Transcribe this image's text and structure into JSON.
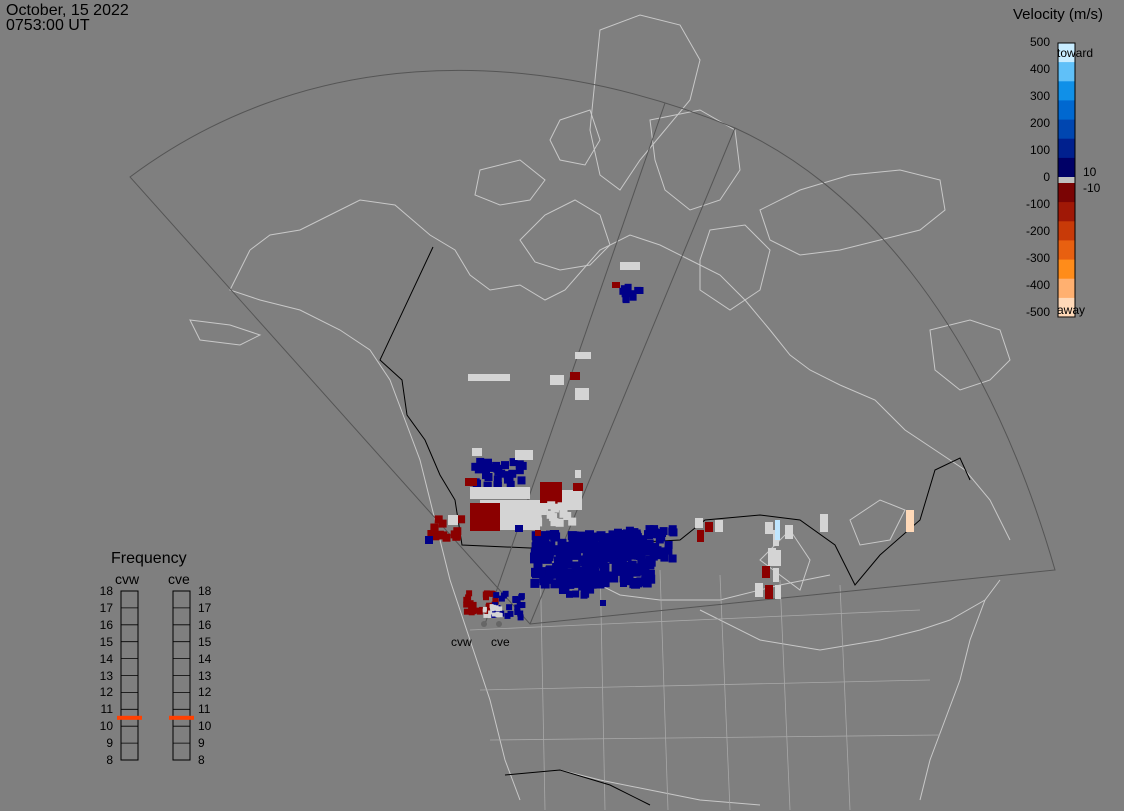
{
  "header": {
    "date": "October, 15 2022",
    "time": "0753:00 UT"
  },
  "colorbar": {
    "title": "Velocity (m/s)",
    "ticks": [
      "500",
      "400",
      "300",
      "200",
      "100",
      "0",
      "-100",
      "-200",
      "-300",
      "-400",
      "-500"
    ],
    "toward_label": "toward",
    "away_label": "away",
    "inner_pos": "10",
    "inner_neg": "-10",
    "colors": [
      "#ffd9b8",
      "#ffb070",
      "#ff8c1a",
      "#e86010",
      "#c83a08",
      "#a01806",
      "#7a0404",
      "#000066",
      "#00208e",
      "#0046b0",
      "#0068d0",
      "#1090e8",
      "#60c0f8",
      "#c8ecff"
    ]
  },
  "frequency": {
    "title": "Frequency",
    "radars": [
      "cvw",
      "cve"
    ],
    "ticks": [
      "18",
      "17",
      "16",
      "15",
      "14",
      "13",
      "12",
      "11",
      "10",
      "9",
      "8"
    ],
    "selected_mhz": {
      "cvw": 10.5,
      "cve": 10.5
    },
    "marker_color": "#ff4000"
  },
  "map": {
    "radar_labels": [
      "cvw",
      "cve"
    ],
    "colors": {
      "toward": "#000088",
      "away": "#8b0000",
      "ground_scatter": "#d4d4d4",
      "coast": "#c8c8c8",
      "border": "#000000",
      "fov": "#555555"
    }
  }
}
